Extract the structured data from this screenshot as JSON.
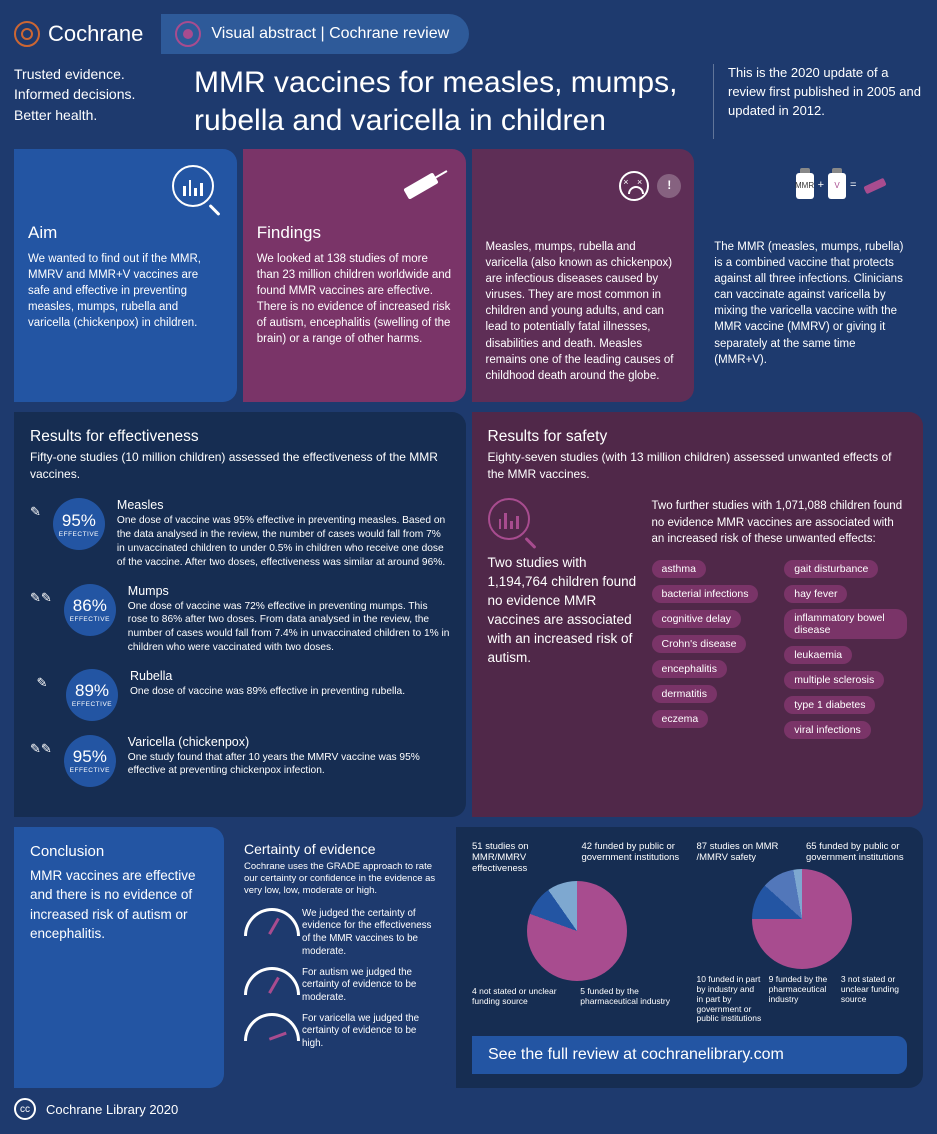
{
  "brand": "Cochrane",
  "visual_abstract_label": "Visual abstract | Cochrane review",
  "tagline_l1": "Trusted evidence.",
  "tagline_l2": "Informed decisions.",
  "tagline_l3": "Better health.",
  "title": "MMR vaccines for measles, mumps, rubella and varicella in children",
  "update_note": "This is the 2020 update of a review first published in 2005 and updated in 2012.",
  "aim_h": "Aim",
  "aim_t": "We wanted to find out if the MMR, MMRV and MMR+V vaccines are safe and effective in preventing measles, mumps, rubella and varicella (chickenpox) in children.",
  "findings_h": "Findings",
  "findings_t": "We looked at 138 studies of more than 23 million children worldwide and found MMR vaccines are effective. There is no evidence of increased risk of autism, encephalitis (swelling of the brain) or a range of other harms.",
  "diseases_t": "Measles, mumps, rubella and varicella (also known as chickenpox) are infectious diseases caused by viruses. They are most common in children and young adults, and can lead to potentially fatal illnesses, disabilities and death. Measles remains one of the leading causes of childhood death around the globe.",
  "mmr_expl": "The MMR (measles, mumps, rubella) is a combined vaccine that protects against all three infections. Clinicians can vaccinate against varicella by mixing the varicella vaccine with the MMR vaccine (MMRV) or giving it separately at the same time (MMR+V).",
  "vial1": "MMR",
  "vial2": "V",
  "eff_h": "Results for effectiveness",
  "eff_sub": "Fifty-one studies (10 million children) assessed the effectiveness of the MMR vaccines.",
  "eff": [
    {
      "pct": "95%",
      "lbl": "EFFECTIVE",
      "dose": "✎",
      "name": "Measles",
      "text": "One dose of vaccine was 95% effective in preventing measles. Based on the data analysed in the review, the number of cases would fall from 7% in unvaccinated children to under 0.5% in children who receive one dose of the vaccine. After two doses, effectiveness was similar at around 96%."
    },
    {
      "pct": "86%",
      "lbl": "EFFECTIVE",
      "dose": "✎✎",
      "name": "Mumps",
      "text": "One dose of vaccine was 72% effective in preventing mumps. This rose to 86% after two doses. From data analysed in the review, the number of cases would fall from 7.4% in unvaccinated children to 1% in children who were vaccinated with two doses."
    },
    {
      "pct": "89%",
      "lbl": "EFFECTIVE",
      "dose": "✎",
      "name": "Rubella",
      "text": "One dose of vaccine was 89% effective in preventing rubella."
    },
    {
      "pct": "95%",
      "lbl": "EFFECTIVE",
      "dose": "✎✎",
      "name": "Varicella (chickenpox)",
      "text": "One study found that after 10 years the MMRV vaccine was 95% effective at preventing chickenpox infection."
    }
  ],
  "safe_h": "Results for safety",
  "safe_sub": "Eighty-seven studies (with 13 million children) assessed unwanted effects of the MMR vaccines.",
  "safe_left": "Two studies with 1,194,764 children found no evidence MMR vaccines are associated with an increased risk of autism.",
  "safe_right_intro": "Two further studies with 1,071,088 children found no evidence MMR vaccines are associated with an increased risk of these unwanted effects:",
  "pills_a": [
    "asthma",
    "bacterial infections",
    "cognitive delay",
    "Crohn's disease",
    "encephalitis",
    "dermatitis",
    "eczema"
  ],
  "pills_b": [
    "gait disturbance",
    "hay fever",
    "inflammatory bowel disease",
    "leukaemia",
    "multiple sclerosis",
    "type 1 diabetes",
    "viral infections"
  ],
  "concl_h": "Conclusion",
  "concl_t": "MMR vaccines are effective and there is no evidence of increased risk of autism or encephalitis.",
  "cert_h": "Certainty of evidence",
  "cert_sub": "Cochrane uses the GRADE approach to rate our certainty or confidence in the evidence as very low, low, moderate or high.",
  "cert1": "We judged the certainty of evidence for the effectiveness of the MMR vaccines to be moderate.",
  "cert2": "For autism we judged the certainty of evidence to be moderate.",
  "cert3": "For varicella we judged the certainty of evidence to be high.",
  "fund1_h1": "51 studies on MMR/MMRV effectiveness",
  "fund1_h2": "42 funded by public or government institutions",
  "fund1_l1": "4 not stated or unclear funding source",
  "fund1_l2": "5 funded by the pharmaceutical industry",
  "fund2_h1": "87 studies on MMR /MMRV safety",
  "fund2_h2": "65 funded by public or government institutions",
  "fund2_l1": "10 funded in part by industry and in part by government or public institutions",
  "fund2_l2": "9 funded by the pharmaceutical industry",
  "fund2_l3": "3 not stated or unclear funding source",
  "full_review": "See the full review at cochranelibrary.com",
  "copyright": "Cochrane Library 2020"
}
